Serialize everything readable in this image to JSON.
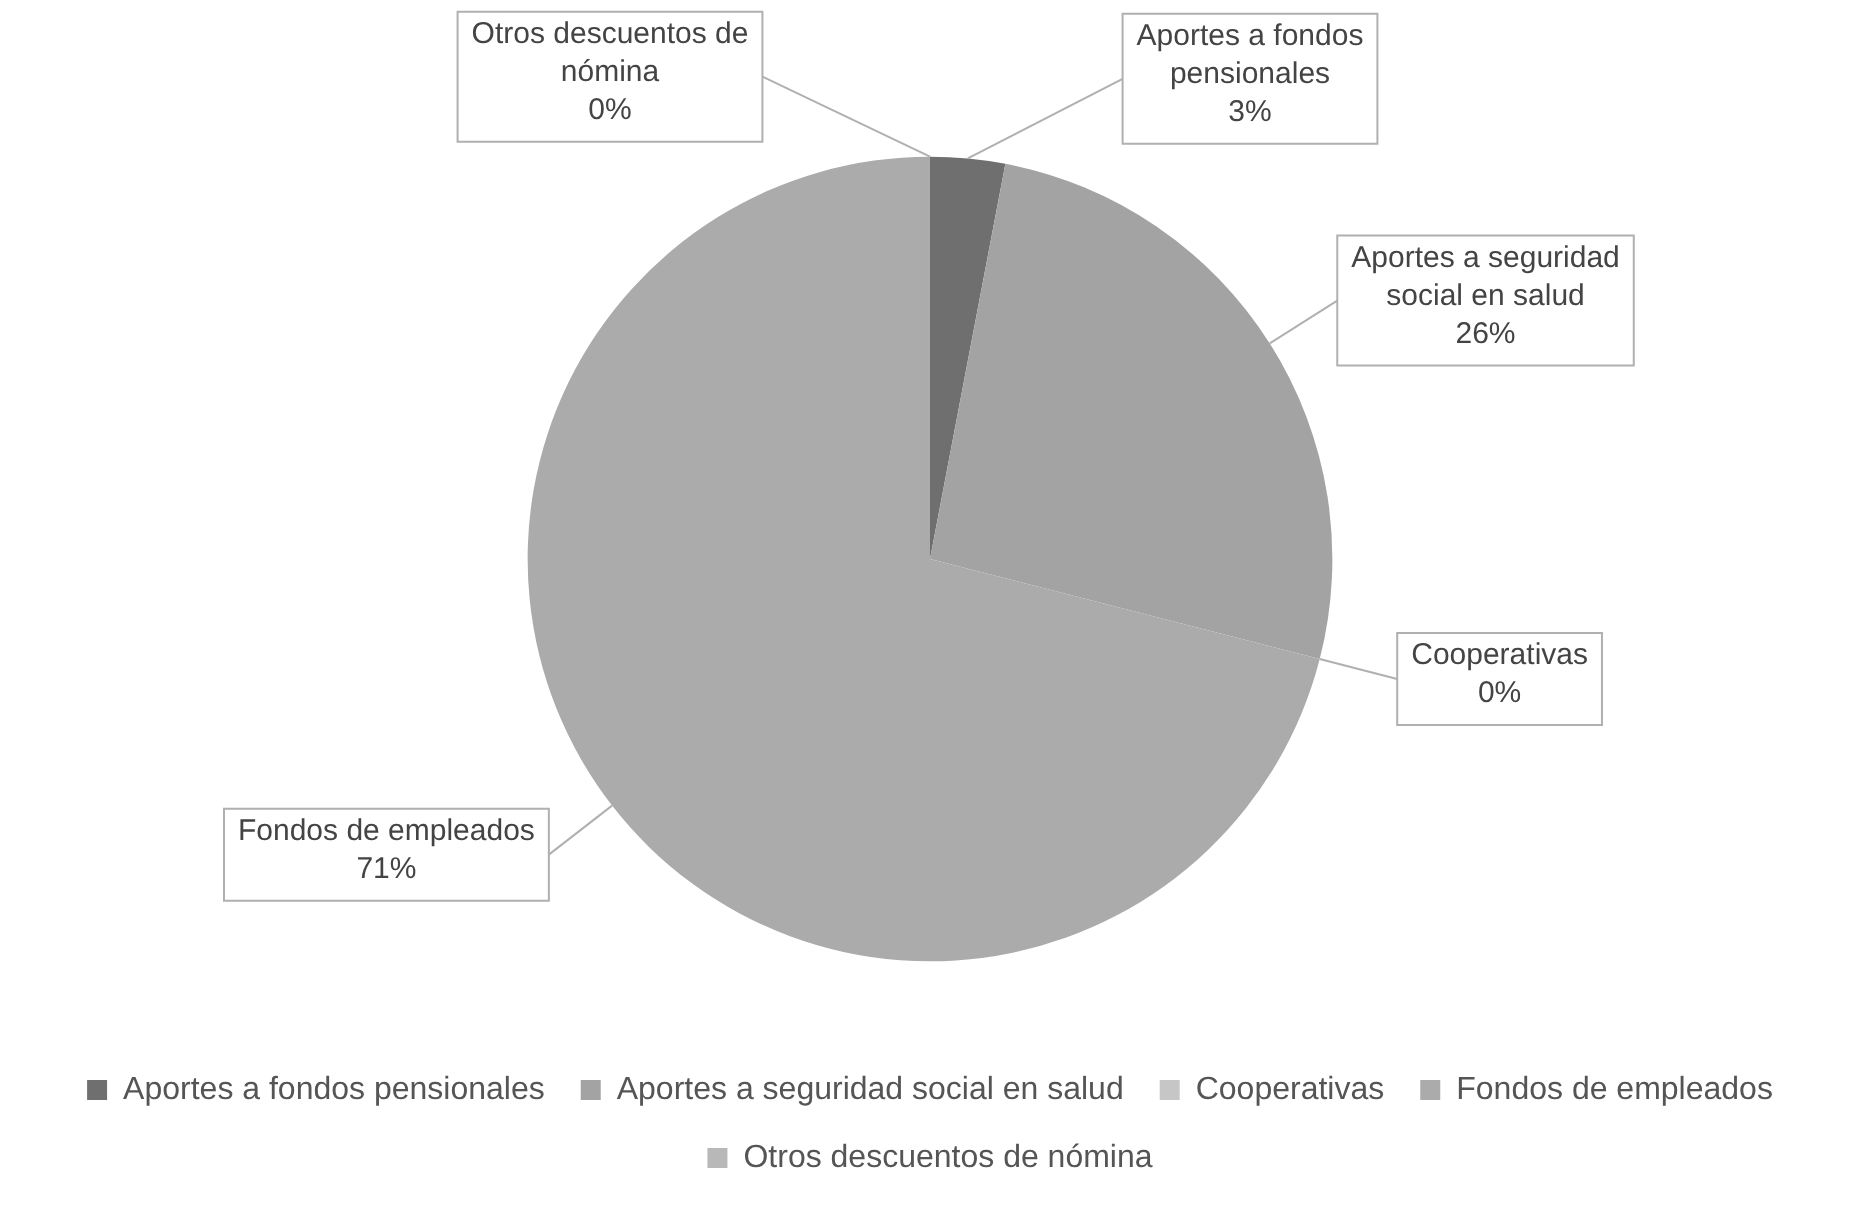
{
  "chart_data": {
    "type": "pie",
    "categories": [
      "Aportes a fondos pensionales",
      "Aportes a seguridad social en salud",
      "Cooperativas",
      "Fondos de empleados",
      "Otros descuentos de nómina"
    ],
    "values": [
      3,
      26,
      0,
      71,
      0
    ],
    "colors": [
      "#6f6f6f",
      "#a3a3a3",
      "#c6c6c6",
      "#ababab",
      "#b8b8b8"
    ],
    "value_labels": [
      "3%",
      "26%",
      "0%",
      "71%",
      "0%"
    ],
    "legend": "bottom"
  }
}
